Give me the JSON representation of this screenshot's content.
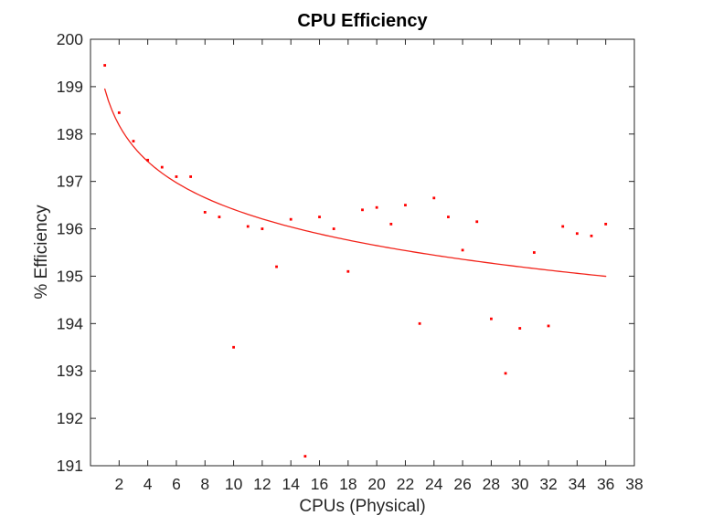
{
  "chart_data": {
    "type": "scatter",
    "title": "CPU Efficiency",
    "xlabel": "CPUs (Physical)",
    "ylabel": "% Efficiency",
    "xlim": [
      0,
      38
    ],
    "ylim": [
      191,
      200
    ],
    "x_ticks": [
      2,
      4,
      6,
      8,
      10,
      12,
      14,
      16,
      18,
      20,
      22,
      24,
      26,
      28,
      30,
      32,
      34,
      36,
      38
    ],
    "y_ticks": [
      191,
      192,
      193,
      194,
      195,
      196,
      197,
      198,
      199,
      200
    ],
    "grid": false,
    "legend": "none",
    "series": [
      {
        "name": "efficiency-points",
        "type": "scatter",
        "marker": "point",
        "color": "#ff0000",
        "points": [
          [
            1,
            199.45
          ],
          [
            2,
            198.45
          ],
          [
            3,
            197.85
          ],
          [
            4,
            197.45
          ],
          [
            5,
            197.3
          ],
          [
            6,
            197.1
          ],
          [
            7,
            197.1
          ],
          [
            8,
            196.35
          ],
          [
            9,
            196.25
          ],
          [
            10,
            193.5
          ],
          [
            11,
            196.05
          ],
          [
            12,
            196.0
          ],
          [
            13,
            195.2
          ],
          [
            14,
            196.2
          ],
          [
            15,
            191.2
          ],
          [
            16,
            196.25
          ],
          [
            17,
            196.0
          ],
          [
            18,
            195.1
          ],
          [
            19,
            196.4
          ],
          [
            20,
            196.45
          ],
          [
            21,
            196.1
          ],
          [
            22,
            196.5
          ],
          [
            23,
            194.0
          ],
          [
            24,
            196.65
          ],
          [
            25,
            196.25
          ],
          [
            26,
            195.55
          ],
          [
            27,
            196.15
          ],
          [
            28,
            194.1
          ],
          [
            29,
            192.95
          ],
          [
            30,
            193.9
          ],
          [
            31,
            195.5
          ],
          [
            32,
            193.95
          ],
          [
            33,
            196.05
          ],
          [
            34,
            195.9
          ],
          [
            35,
            195.85
          ],
          [
            36,
            196.1
          ]
        ]
      },
      {
        "name": "fit-curve",
        "type": "line",
        "color": "#f2231a",
        "fit_model": "y = a + b*ln(x)",
        "a": 198.95,
        "b": -1.103,
        "x_start": 1,
        "x_end": 36
      }
    ],
    "colors": {
      "axis": "#262626",
      "tick_label": "#262626",
      "title": "#000000",
      "background": "#ffffff"
    }
  }
}
